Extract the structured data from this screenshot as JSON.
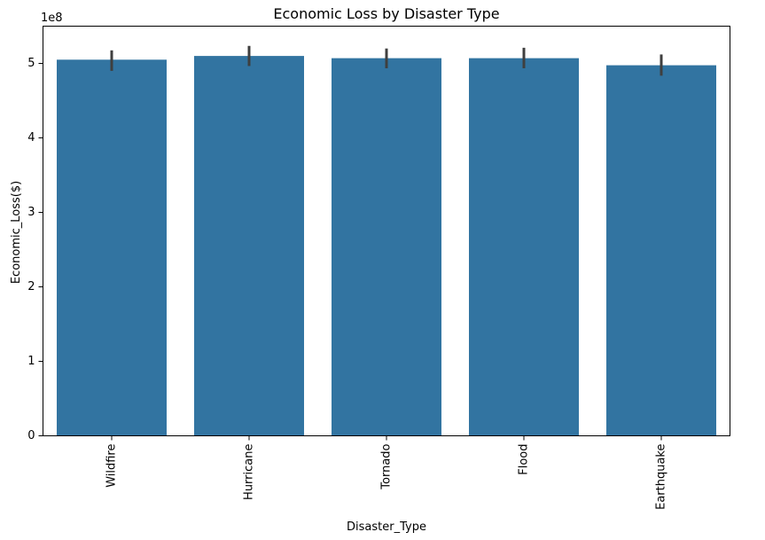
{
  "chart_data": {
    "type": "bar",
    "title": "Economic Loss by Disaster Type",
    "xlabel": "Disaster_Type",
    "ylabel": "Economic_Loss($)",
    "y_offset_label": "1e8",
    "categories": [
      "Wildfire",
      "Hurricane",
      "Tornado",
      "Flood",
      "Earthquake"
    ],
    "values": [
      505000000,
      510000000,
      507000000,
      507000000,
      497500000
    ],
    "error_bars": [
      [
        490000000,
        517500000
      ],
      [
        496500000,
        523500000
      ],
      [
        493500000,
        520000000
      ],
      [
        493500000,
        521000000
      ],
      [
        483500000,
        512000000
      ]
    ],
    "ylim": [
      0,
      550000000
    ],
    "yticks": [
      0,
      100000000,
      200000000,
      300000000,
      400000000,
      500000000
    ],
    "ytick_labels": [
      "0",
      "1",
      "2",
      "3",
      "4",
      "5"
    ],
    "bar_color": "#3274a1",
    "errorbar_color": "#3f3f3f",
    "grid": false
  }
}
